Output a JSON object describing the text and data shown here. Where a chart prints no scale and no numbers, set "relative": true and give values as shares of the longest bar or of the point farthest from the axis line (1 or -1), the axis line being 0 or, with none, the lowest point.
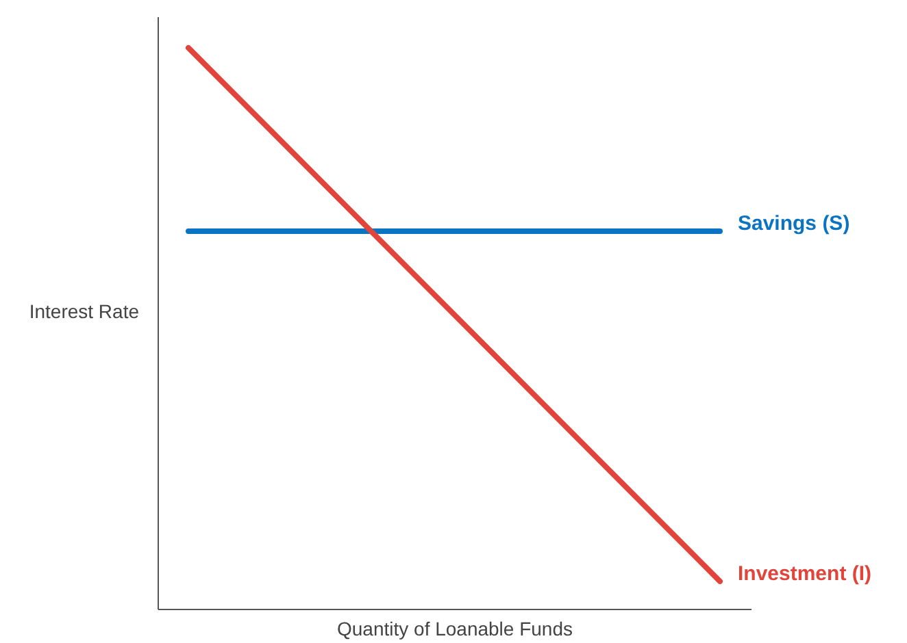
{
  "chart_data": {
    "type": "line",
    "xlabel": "Quantity of Loanable Funds",
    "ylabel": "Interest Rate",
    "categories": [
      null,
      null
    ],
    "relative": true,
    "grid": false,
    "tick_labels": false,
    "line_style": "solid",
    "series": [
      {
        "name": "Savings (S)",
        "color": "#0b74c2",
        "values": [
          0.673,
          0.673
        ]
      },
      {
        "name": "Investment (I)",
        "color": "#e0443b",
        "values": [
          1,
          0.049
        ]
      }
    ]
  }
}
